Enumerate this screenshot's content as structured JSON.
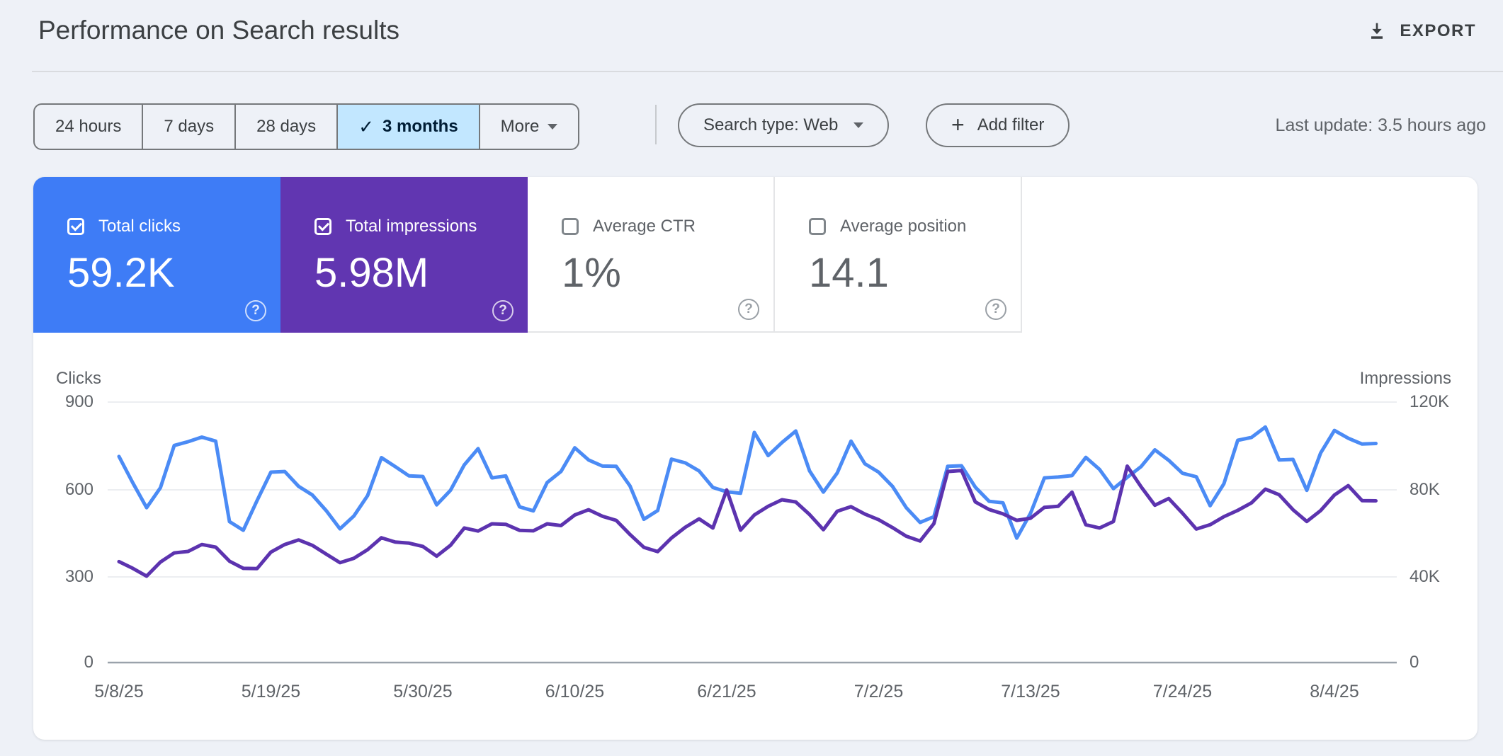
{
  "header": {
    "title": "Performance on Search results",
    "export_label": "EXPORT"
  },
  "toolbar": {
    "date_ranges": [
      {
        "label": "24 hours",
        "selected": false
      },
      {
        "label": "7 days",
        "selected": false
      },
      {
        "label": "28 days",
        "selected": false
      },
      {
        "label": "3 months",
        "selected": true,
        "checkmark": "✓"
      },
      {
        "label": "More",
        "selected": false
      }
    ],
    "search_type_label": "Search type: Web",
    "add_filter_label": "Add filter",
    "add_filter_plus": "+",
    "last_update": "Last update: 3.5 hours ago"
  },
  "metric_cards": [
    {
      "label": "Total clicks",
      "value": "59.2K",
      "checked": true,
      "color": "#3e7cf6",
      "help": "?"
    },
    {
      "label": "Total impressions",
      "value": "5.98M",
      "checked": true,
      "color": "#6136b1",
      "help": "?"
    },
    {
      "label": "Average CTR",
      "value": "1%",
      "checked": false,
      "color": "#ffffff",
      "help": "?"
    },
    {
      "label": "Average position",
      "value": "14.1",
      "checked": false,
      "color": "#ffffff",
      "help": "?"
    }
  ],
  "chart_data": {
    "type": "line",
    "title": "Performance on Search results",
    "grid": true,
    "legend_position": "none",
    "start_date": "5/8/25",
    "end_date": "8/7/25",
    "left_axis": {
      "label": "Clicks",
      "ticks": [
        "900",
        "600",
        "300",
        "0"
      ],
      "max": 900
    },
    "right_axis": {
      "label": "Impressions",
      "ticks": [
        "120K",
        "80K",
        "40K",
        "0"
      ],
      "max": 120000
    },
    "x_tick_labels": [
      "5/8/25",
      "5/19/25",
      "5/30/25",
      "6/10/25",
      "6/21/25",
      "7/2/25",
      "7/13/25",
      "7/24/25",
      "8/4/25"
    ],
    "x_tick_days": [
      0,
      11,
      22,
      33,
      44,
      55,
      66,
      77,
      88
    ],
    "series": [
      {
        "name": "Clicks",
        "axis": "left",
        "color": "#4b8bf5",
        "values": [
          712,
          621,
          535,
          604,
          750,
          763,
          779,
          765,
          487,
          457,
          560,
          658,
          660,
          609,
          579,
          525,
          462,
          506,
          577,
          708,
          677,
          645,
          643,
          545,
          595,
          683,
          739,
          638,
          645,
          538,
          524,
          622,
          660,
          742,
          700,
          679,
          678,
          610,
          495,
          525,
          703,
          690,
          662,
          605,
          590,
          585,
          795,
          715,
          760,
          800,
          662,
          589,
          655,
          765,
          687,
          658,
          609,
          535,
          484,
          504,
          678,
          680,
          606,
          557,
          552,
          430,
          516,
          638,
          641,
          646,
          709,
          667,
          601,
          640,
          677,
          735,
          699,
          654,
          642,
          542,
          618,
          768,
          778,
          814,
          700,
          702,
          595,
          724,
          802,
          775,
          755,
          757
        ]
      },
      {
        "name": "Impressions",
        "axis": "right",
        "color": "#5c33af",
        "values": [
          46500,
          43400,
          39800,
          46300,
          50500,
          51200,
          54400,
          53200,
          46700,
          43400,
          43300,
          50900,
          54400,
          56500,
          54000,
          50000,
          46000,
          48000,
          52000,
          57500,
          55500,
          55000,
          53500,
          49000,
          54000,
          62000,
          60600,
          63900,
          63700,
          60900,
          60700,
          63900,
          63100,
          68000,
          70400,
          67400,
          65500,
          59000,
          53100,
          51100,
          57400,
          62300,
          66200,
          62000,
          79500,
          61000,
          68000,
          72000,
          75000,
          74000,
          68200,
          61200,
          69700,
          71800,
          68400,
          65800,
          62200,
          58200,
          56000,
          64000,
          88000,
          88500,
          74000,
          70500,
          68500,
          65500,
          66500,
          71500,
          72000,
          78500,
          63500,
          62000,
          65000,
          90500,
          81000,
          72500,
          75600,
          68800,
          61500,
          63500,
          67200,
          70100,
          73600,
          79900,
          77300,
          70400,
          65000,
          70000,
          77200,
          81500,
          74600,
          74500
        ]
      }
    ]
  }
}
